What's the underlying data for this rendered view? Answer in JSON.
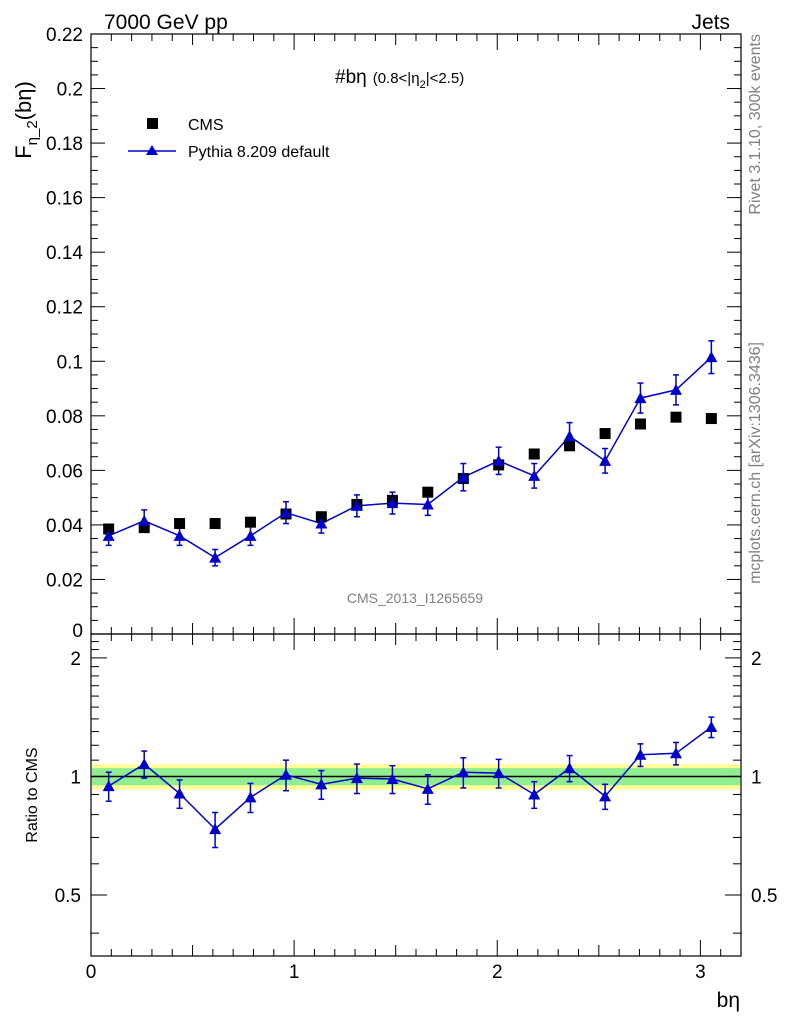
{
  "header": {
    "left": "7000 GeV pp",
    "right": "Jets"
  },
  "side_labels": {
    "rivet": "Rivet 3.1.10,  300k events",
    "mcplots": "mcplots.cern.ch [arXiv:1306.3436]"
  },
  "watermark": "CMS_2013_I1265659",
  "chart_data": {
    "type": "scatter",
    "title": "#bη (0.8<|η₂|<2.5)",
    "title_main": "#bη",
    "title_sub_a": "(0.8<|η",
    "title_sub_sub": "2",
    "title_sub_b": "|<2.5)",
    "ylabel_main": "F",
    "ylabel_sub": "η_2",
    "ylabel_tail": "(bη)",
    "xlabel": "bη",
    "ratio_ylabel": "Ratio to CMS",
    "xlim": [
      0,
      3.2
    ],
    "ylim": [
      0,
      0.22
    ],
    "ratio_ylim": [
      0.35,
      2.3
    ],
    "x_ticks": [
      "0",
      "1",
      "2",
      "3"
    ],
    "y_ticks": [
      "0",
      "0.02",
      "0.04",
      "0.06",
      "0.08",
      "0.1",
      "0.12",
      "0.14",
      "0.16",
      "0.18",
      "0.2",
      "0.22"
    ],
    "ratio_ticks": [
      "0.5",
      "1",
      "2"
    ],
    "legend_position": "top-left",
    "x": [
      0.087,
      0.262,
      0.436,
      0.611,
      0.785,
      0.96,
      1.134,
      1.309,
      1.484,
      1.658,
      1.833,
      2.007,
      2.182,
      2.356,
      2.531,
      2.705,
      2.88,
      3.054
    ],
    "series": [
      {
        "name": "CMS",
        "marker": "square",
        "color": "#000000",
        "values": [
          0.0385,
          0.039,
          0.0405,
          0.0405,
          0.041,
          0.044,
          0.043,
          0.0475,
          0.049,
          0.052,
          0.057,
          0.062,
          0.066,
          0.069,
          0.0735,
          0.077,
          0.0795,
          0.079
        ]
      },
      {
        "name": "Pythia 8.209 default",
        "marker": "triangle",
        "color": "#0000cc",
        "values": [
          0.036,
          0.0415,
          0.036,
          0.028,
          0.036,
          0.0445,
          0.0405,
          0.047,
          0.048,
          0.0475,
          0.0575,
          0.0635,
          0.058,
          0.0725,
          0.0635,
          0.0865,
          0.0895,
          0.1015
        ],
        "errors": [
          0.0035,
          0.004,
          0.0035,
          0.003,
          0.0035,
          0.004,
          0.0035,
          0.004,
          0.004,
          0.004,
          0.005,
          0.005,
          0.0045,
          0.005,
          0.0045,
          0.0055,
          0.0055,
          0.006
        ],
        "ratio": [
          0.945,
          1.075,
          0.905,
          0.735,
          0.885,
          1.01,
          0.955,
          0.99,
          0.985,
          0.93,
          1.025,
          1.02,
          0.9,
          1.05,
          0.89,
          1.135,
          1.145,
          1.335
        ],
        "ratio_errors": [
          0.08,
          0.085,
          0.075,
          0.075,
          0.075,
          0.09,
          0.08,
          0.085,
          0.08,
          0.08,
          0.09,
          0.085,
          0.07,
          0.08,
          0.065,
          0.075,
          0.075,
          0.08
        ]
      }
    ],
    "ratio_band_green": 0.05,
    "ratio_band_yellow": 0.075,
    "colors": {
      "green_band": "#90ee90",
      "yellow_band": "#ffff99",
      "mc_line": "#0000cc"
    }
  }
}
